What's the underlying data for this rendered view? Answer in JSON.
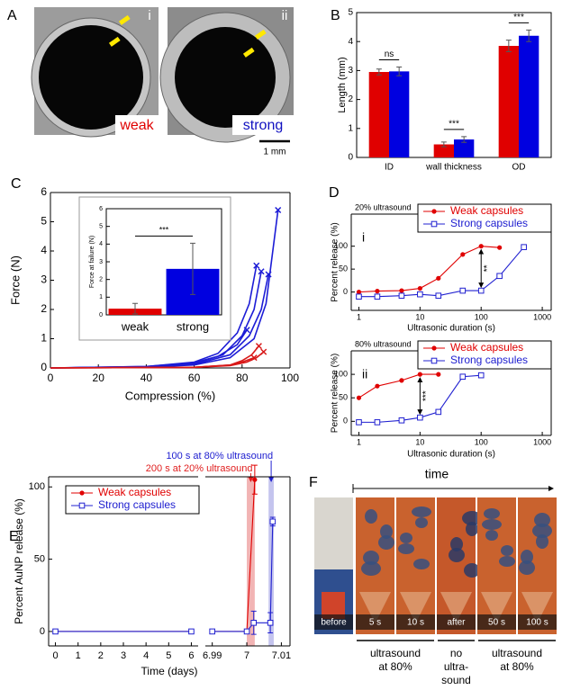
{
  "panel_labels": [
    "A",
    "B",
    "C",
    "D",
    "E",
    "F"
  ],
  "panel_a": {
    "images": [
      {
        "numeral": "i",
        "label": "weak"
      },
      {
        "numeral": "ii",
        "label": "strong"
      }
    ],
    "scale_bar": "1 mm"
  },
  "chart_data": [
    {
      "type": "bar",
      "ylabel": "Length (mm)",
      "categories": [
        "ID",
        "wall thickness",
        "OD"
      ],
      "series": [
        {
          "color": "#e00000",
          "values": [
            2.95,
            0.45,
            3.85
          ],
          "errors": [
            0.1,
            0.08,
            0.2
          ]
        },
        {
          "color": "#0000e0",
          "values": [
            2.97,
            0.62,
            4.2
          ],
          "errors": [
            0.15,
            0.1,
            0.2
          ]
        }
      ],
      "significance": [
        "ns",
        "***",
        "***"
      ],
      "ylim": [
        0,
        5
      ],
      "yticks": [
        0,
        1,
        2,
        3,
        4,
        5
      ]
    },
    {
      "type": "line",
      "xlabel": "Compression (%)",
      "ylabel": "Force (N)",
      "xlim": [
        0,
        100
      ],
      "xticks": [
        0,
        20,
        40,
        60,
        80,
        100
      ],
      "ylim": [
        0,
        6
      ],
      "yticks": [
        0,
        1,
        2,
        3,
        4,
        5,
        6
      ],
      "series": [
        {
          "color": "#1c1cd6",
          "marker": "x-end",
          "x": [
            0,
            40,
            60,
            70,
            78,
            83,
            86
          ],
          "values": [
            0,
            0.05,
            0.2,
            0.5,
            1.2,
            2.2,
            3.5
          ]
        },
        {
          "color": "#1c1cd6",
          "marker": "x-end",
          "x": [
            0,
            40,
            60,
            72,
            80,
            85,
            88
          ],
          "values": [
            0,
            0.04,
            0.15,
            0.45,
            1.1,
            2.0,
            3.3
          ]
        },
        {
          "color": "#1c1cd6",
          "marker": "x-end",
          "x": [
            0,
            40,
            60,
            75,
            83,
            88,
            91
          ],
          "values": [
            0,
            0.03,
            0.12,
            0.45,
            1.1,
            2.0,
            3.2
          ]
        },
        {
          "color": "#1c1cd6",
          "marker": "x-end",
          "x": [
            0,
            40,
            60,
            75,
            85,
            90,
            95
          ],
          "values": [
            0,
            0.03,
            0.1,
            0.35,
            1.0,
            2.2,
            5.4
          ]
        },
        {
          "color": "#1c1cd6",
          "marker": "x-end",
          "x": [
            0,
            40,
            60,
            70,
            78,
            82
          ],
          "values": [
            0,
            0.05,
            0.18,
            0.4,
            0.8,
            1.3
          ]
        },
        {
          "color": "#d81818",
          "marker": "x-end",
          "x": [
            0,
            60,
            75,
            80,
            84,
            87
          ],
          "values": [
            0,
            0.02,
            0.1,
            0.25,
            0.45,
            0.75
          ]
        },
        {
          "color": "#d81818",
          "marker": "x-end",
          "x": [
            0,
            60,
            75,
            82,
            86,
            89
          ],
          "values": [
            0,
            0.02,
            0.08,
            0.2,
            0.35,
            0.55
          ]
        },
        {
          "color": "#d81818",
          "marker": "x-end",
          "x": [
            0,
            60,
            75,
            80,
            85
          ],
          "values": [
            0,
            0.02,
            0.1,
            0.2,
            0.35
          ]
        }
      ]
    },
    {
      "type": "bar",
      "ylabel": "Force at failure (N)",
      "categories": [
        "weak",
        "strong"
      ],
      "values": [
        0.35,
        2.6
      ],
      "errors": [
        0.3,
        1.45
      ],
      "colors": [
        "#e00000",
        "#0000e0"
      ],
      "significance": "***",
      "ylim": [
        0,
        6
      ],
      "yticks": [
        0,
        1,
        2,
        3,
        4,
        5,
        6
      ]
    },
    {
      "type": "line",
      "xscale": "log",
      "condition": "20% ultrasound",
      "numeral": "i",
      "significance": "**",
      "xlabel": "Ultrasonic duration (s)",
      "ylabel": "Percent release (%)",
      "xlim": [
        0.75,
        1400
      ],
      "xticks": [
        1,
        10,
        100,
        1000
      ],
      "ylim": [
        -40,
        170
      ],
      "yticks": [
        0,
        50,
        100
      ],
      "legend": "top-right",
      "series": [
        {
          "name": "Weak capsules",
          "color": "#e00000",
          "marker": "circle",
          "x": [
            1,
            2,
            5,
            10,
            20,
            50,
            100,
            200
          ],
          "values": [
            0,
            2,
            3,
            8,
            30,
            82,
            100,
            97
          ]
        },
        {
          "name": "Strong capsules",
          "color": "#2020d0",
          "marker": "square-open",
          "x": [
            1,
            2,
            5,
            10,
            20,
            50,
            100,
            200,
            500
          ],
          "values": [
            -10,
            -10,
            -8,
            -5,
            -8,
            3,
            3,
            35,
            98
          ]
        }
      ]
    },
    {
      "type": "line",
      "xscale": "log",
      "condition": "80% ultrasound",
      "numeral": "ii",
      "significance": "***",
      "xlabel": "Ultrasonic duration (s)",
      "ylabel": "Percent release (%)",
      "xlim": [
        0.75,
        1400
      ],
      "xticks": [
        1,
        10,
        100,
        1000
      ],
      "ylim": [
        -30,
        150
      ],
      "yticks": [
        0,
        50,
        100
      ],
      "legend": "top-right",
      "series": [
        {
          "name": "Weak capsules",
          "color": "#e00000",
          "marker": "circle",
          "x": [
            1,
            2,
            5,
            10,
            20
          ],
          "values": [
            50,
            75,
            87,
            100,
            100
          ]
        },
        {
          "name": "Strong capsules",
          "color": "#2020d0",
          "marker": "square-open",
          "x": [
            1,
            2,
            5,
            10,
            20,
            50,
            100
          ],
          "values": [
            -2,
            -2,
            2,
            8,
            20,
            95,
            98
          ]
        }
      ]
    },
    {
      "type": "line",
      "xlabel": "Time (days)",
      "ylabel": "Percent AuNP release (%)",
      "x_segments": [
        {
          "xlim": [
            -0.3,
            6.3
          ],
          "xticks": [
            0,
            1,
            2,
            3,
            4,
            5,
            6
          ]
        },
        {
          "xlim": [
            6.988,
            7.0125
          ],
          "xticks": [
            6.99,
            7,
            7.01
          ]
        }
      ],
      "ylim": [
        -10,
        107
      ],
      "yticks": [
        0,
        50,
        100
      ],
      "legend": "top-left",
      "bands": [
        {
          "label": "200 s at 20% ultrasound",
          "xlim": [
            7,
            7.0023
          ],
          "color": "#f2b4b4",
          "label_color": "#e02020"
        },
        {
          "label": "100 s at 80% ultrasound",
          "xlim": [
            7.0063,
            7.0078
          ],
          "color": "#c4c4ee",
          "label_color": "#2020d0"
        }
      ],
      "series": [
        {
          "name": "Weak capsules",
          "color": "#e00000",
          "marker": "circle",
          "x": [
            0,
            6,
            null,
            6.99,
            7,
            7.0023
          ],
          "values": [
            0,
            0,
            null,
            0,
            0,
            105
          ],
          "errors": [
            null,
            null,
            null,
            null,
            null,
            10
          ]
        },
        {
          "name": "Strong capsules",
          "color": "#2020d0",
          "marker": "square-open",
          "x": [
            0,
            6,
            null,
            6.99,
            7,
            7.002,
            7.0068,
            7.0075
          ],
          "values": [
            0,
            0,
            null,
            0,
            0,
            6,
            6,
            76
          ],
          "errors": [
            null,
            null,
            null,
            null,
            null,
            8,
            7,
            3
          ]
        }
      ]
    }
  ],
  "panel_f": {
    "arrow_label": "time",
    "frames": [
      "before",
      "5 s",
      "10 s",
      "after",
      "50 s",
      "100 s"
    ],
    "groups": [
      [
        "ultrasound",
        "at 80%"
      ],
      [
        "no",
        "ultra-",
        "sound"
      ],
      [
        "ultrasound",
        "at 80%"
      ]
    ]
  }
}
